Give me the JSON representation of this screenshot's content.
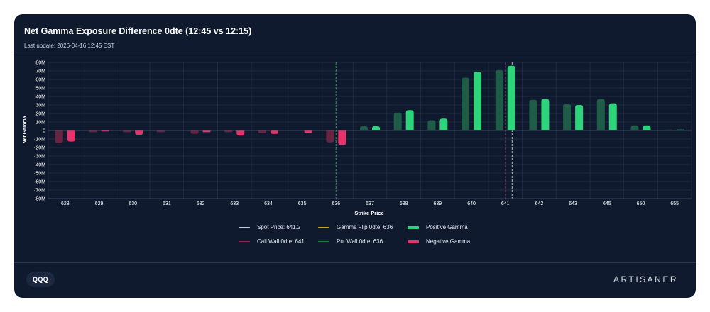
{
  "header": {
    "title": "Net Gamma Exposure Difference 0dte (12:45 vs 12:15)",
    "subtitle": "Last update: 2026-04-16 12:45 EST"
  },
  "footer": {
    "ticker": "QQQ",
    "brand": "ARTISANER"
  },
  "legend": {
    "spot": "Spot Price: 641.2",
    "flip": "Gamma Flip 0dte: 636",
    "positive": "Positive Gamma",
    "call_wall": "Call Wall 0dte: 641",
    "put_wall": "Put Wall 0dte: 636",
    "negative": "Negative Gamma"
  },
  "colors": {
    "positive": "#2ed47a",
    "positive_prev": "#1e5c48",
    "negative": "#e8336a",
    "negative_prev": "#6a2340",
    "spot": "#c3c9d4",
    "flip": "#c9a227",
    "call_wall": "#8a2b52",
    "put_wall": "#1f7a50",
    "grid": "#233049",
    "text": "#ffffff"
  },
  "chart_data": {
    "type": "bar",
    "title": "Net Gamma Exposure Difference 0dte (12:45 vs 12:15)",
    "xlabel": "Strike Price",
    "ylabel": "Net Gamma",
    "ylim": [
      -80,
      80
    ],
    "y_unit": "M",
    "yticks": [
      -80,
      -70,
      -60,
      -50,
      -40,
      -30,
      -20,
      -10,
      0,
      10,
      20,
      30,
      40,
      50,
      60,
      70,
      80
    ],
    "ytick_labels": [
      "-80M",
      "-70M",
      "-60M",
      "-50M",
      "-40M",
      "-30M",
      "-20M",
      "-10M",
      "0",
      "10M",
      "20M",
      "30M",
      "40M",
      "50M",
      "60M",
      "70M",
      "80M"
    ],
    "categories": [
      "628",
      "629",
      "630",
      "631",
      "632",
      "633",
      "634",
      "635",
      "636",
      "637",
      "638",
      "639",
      "640",
      "641",
      "642",
      "643",
      "645",
      "650",
      "655"
    ],
    "series": [
      {
        "name": "12:15",
        "values": [
          -15,
          -2,
          -2,
          -2,
          -4,
          -2,
          -3,
          0,
          -14,
          5,
          21,
          12,
          62,
          71,
          36,
          31,
          37,
          6,
          1
        ]
      },
      {
        "name": "12:45",
        "values": [
          -13,
          -1,
          -5,
          0,
          -2,
          -6,
          -4,
          -3,
          -17,
          5,
          24,
          14,
          69,
          76,
          37,
          30,
          32,
          6,
          1
        ]
      }
    ],
    "reference_lines": [
      {
        "name": "Spot Price",
        "x": 641.2
      },
      {
        "name": "Gamma Flip 0dte",
        "x": 636
      },
      {
        "name": "Call Wall 0dte",
        "x": 641
      },
      {
        "name": "Put Wall 0dte",
        "x": 636
      }
    ],
    "grid": true,
    "legend_position": "bottom"
  }
}
